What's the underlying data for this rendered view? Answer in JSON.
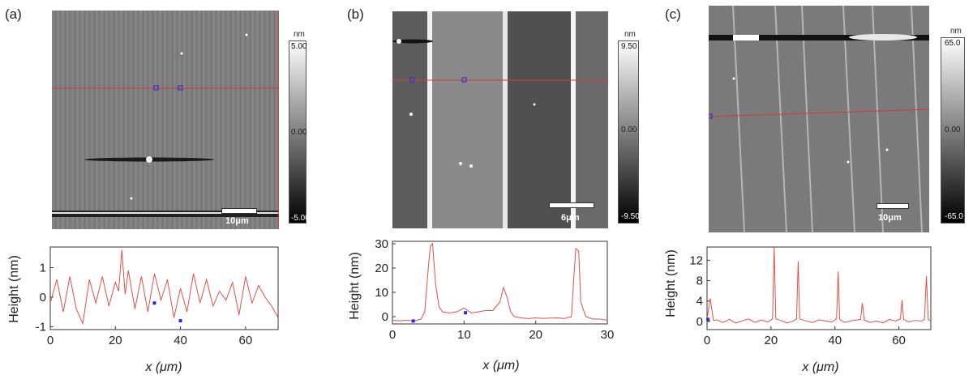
{
  "figure": {
    "panels": [
      {
        "label": "(a)",
        "colorbar": {
          "unit": "nm",
          "max": "5.00",
          "mid": "0.00",
          "min": "-5.00"
        },
        "scale_bar": "10μm"
      },
      {
        "label": "(b)",
        "colorbar": {
          "unit": "nm",
          "max": "9.50",
          "mid": "0.00",
          "min": "-9.50"
        },
        "scale_bar": "6μm"
      },
      {
        "label": "(c)",
        "colorbar": {
          "unit": "nm",
          "max": "65.0",
          "mid": "0.00",
          "min": "-65.0"
        },
        "scale_bar": "10μm"
      }
    ]
  },
  "chart_data": [
    {
      "type": "line",
      "ylabel": "Height (nm)",
      "xlabel": "x (μm)",
      "xlim": [
        0,
        70
      ],
      "ylim": [
        -1.1,
        1.7
      ],
      "xticks": [
        0,
        20,
        40,
        60
      ],
      "yticks": [
        -1,
        0,
        1
      ],
      "series": [
        {
          "x": [
            0,
            2,
            4,
            6,
            8,
            10,
            12,
            14,
            16,
            18,
            20,
            21,
            22,
            23,
            24,
            26,
            28,
            30,
            32,
            34,
            36,
            38,
            40,
            42,
            44,
            46,
            48,
            50,
            52,
            54,
            56,
            58,
            60,
            62,
            64,
            66,
            68,
            70
          ],
          "values": [
            -0.2,
            0.6,
            -0.5,
            0.7,
            -0.4,
            -0.9,
            0.6,
            -0.2,
            0.7,
            -0.3,
            0.5,
            0.2,
            1.6,
            0.1,
            0.9,
            -0.4,
            0.7,
            -0.5,
            0.8,
            -0.1,
            0.6,
            -0.7,
            0.3,
            -0.5,
            0.8,
            -0.2,
            0.6,
            -0.3,
            0.2,
            -0.1,
            0.5,
            -0.6,
            0.7,
            -0.2,
            0.4,
            0.0,
            -0.3,
            -0.7
          ]
        }
      ],
      "markers": [
        {
          "x": 32,
          "y": -0.2
        },
        {
          "x": 40,
          "y": -0.8
        }
      ]
    },
    {
      "type": "line",
      "ylabel": "Height (nm)",
      "xlabel": "x (μm)",
      "xlim": [
        0,
        30
      ],
      "ylim": [
        -3,
        31
      ],
      "xticks": [
        0,
        10,
        20,
        30
      ],
      "yticks": [
        0,
        10,
        20,
        30
      ],
      "series": [
        {
          "x": [
            0,
            1,
            2,
            3,
            4,
            4.5,
            5,
            5.3,
            5.6,
            6,
            6.5,
            7,
            8,
            9,
            10,
            11,
            12,
            13,
            14,
            15,
            15.5,
            16,
            16.5,
            17,
            18,
            19,
            20,
            21,
            22,
            23,
            24,
            25,
            25.3,
            25.6,
            26,
            26.3,
            27,
            28,
            29,
            30
          ],
          "values": [
            -1.5,
            -1.7,
            -1.5,
            -1.8,
            -1,
            2,
            20,
            29,
            30,
            14,
            4,
            2,
            1.5,
            2,
            3.5,
            1.5,
            2,
            2.5,
            2.5,
            6,
            12,
            8,
            2,
            0,
            -0.5,
            -0.8,
            -0.5,
            -0.7,
            -0.6,
            -0.5,
            -0.8,
            0,
            15,
            28,
            27,
            6,
            0,
            -1,
            -1,
            -1.5
          ]
        }
      ],
      "markers": [
        {
          "x": 2.9,
          "y": -1.8
        },
        {
          "x": 10.2,
          "y": 1.6
        }
      ]
    },
    {
      "type": "line",
      "ylabel": "Height (nm)",
      "xlabel": "x (μm)",
      "xlim": [
        0,
        70
      ],
      "ylim": [
        -1.6,
        14.6
      ],
      "xticks": [
        0,
        20,
        40,
        60
      ],
      "yticks": [
        0,
        4,
        8,
        12
      ],
      "series": [
        {
          "x": [
            0,
            1,
            2,
            3,
            5,
            7,
            9,
            11,
            13,
            15,
            17,
            19,
            20.5,
            21,
            21.5,
            23,
            25,
            27,
            28,
            28.5,
            29,
            31,
            33,
            35,
            37,
            39,
            40.5,
            41,
            41.5,
            43,
            45,
            47,
            48,
            48.6,
            49.2,
            51,
            53,
            55,
            57,
            59,
            60.5,
            61,
            61.5,
            63,
            65,
            67,
            68,
            68.6,
            69.2,
            70
          ],
          "values": [
            0.5,
            4.5,
            0.2,
            0.3,
            -0.2,
            0.4,
            -0.3,
            0.1,
            0.5,
            -0.2,
            0.3,
            -0.1,
            0.5,
            14.5,
            0.5,
            0.2,
            -0.3,
            0.1,
            0.5,
            11.8,
            0.5,
            0.1,
            -0.2,
            0.3,
            0.1,
            -0.1,
            0.5,
            9.8,
            0.4,
            -0.2,
            0.1,
            0.3,
            0.4,
            3.6,
            0.3,
            -0.2,
            0.1,
            -0.3,
            0.4,
            0.1,
            0.5,
            4.2,
            0.4,
            -0.1,
            0.2,
            0.1,
            0.3,
            8.9,
            0.4,
            0.1
          ]
        }
      ],
      "markers": [
        {
          "x": 0.3,
          "y": 0.4
        }
      ]
    }
  ]
}
